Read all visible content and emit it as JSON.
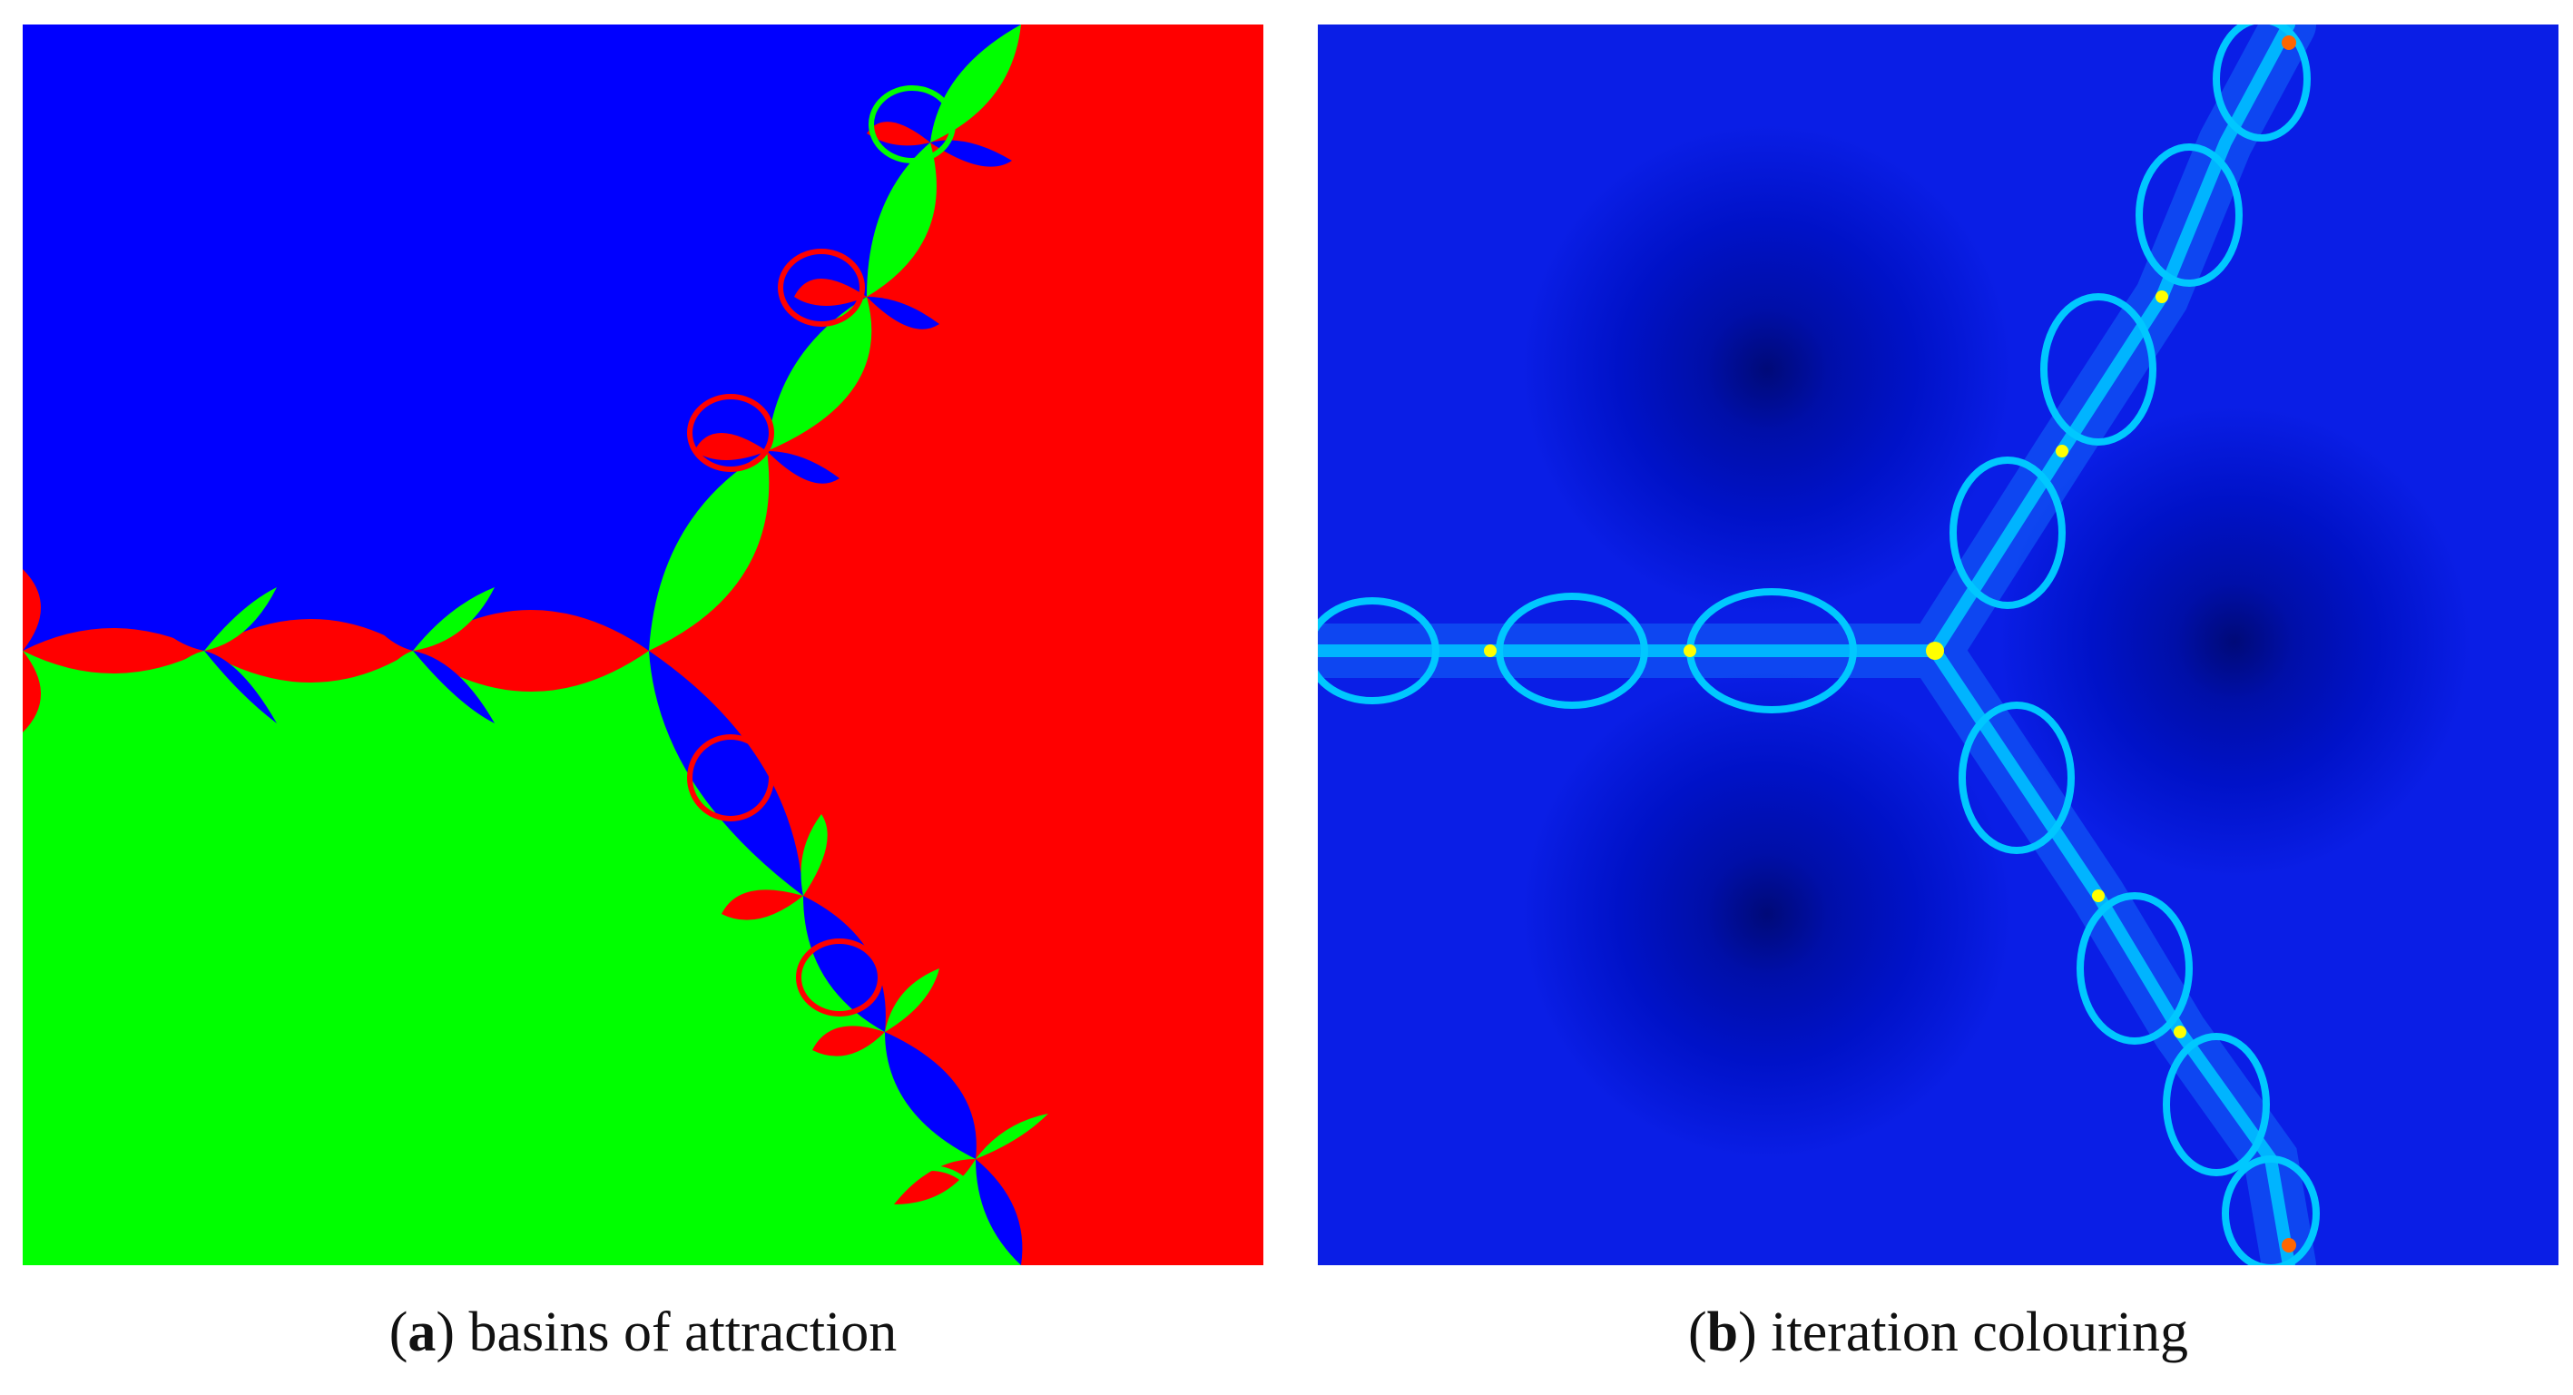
{
  "figures": [
    {
      "label": "a",
      "caption": "basins of attraction",
      "colors": {
        "blue": "#0000ff",
        "red": "#ff0000",
        "green": "#00ff00"
      }
    },
    {
      "label": "b",
      "caption": "iteration colouring",
      "colors": {
        "background": "#0a1ee6",
        "dark_basin": "#000a96",
        "glow": "#00c8ff",
        "highlight": "#ffff00"
      }
    }
  ]
}
